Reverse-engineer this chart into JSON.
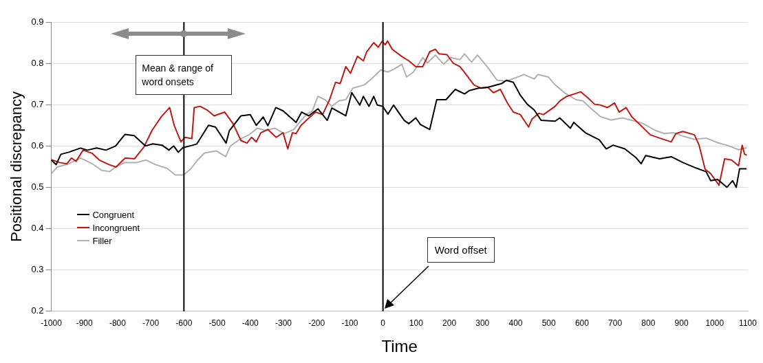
{
  "chart_data": {
    "type": "line",
    "xlabel": "Time",
    "ylabel": "Positional discrepancy",
    "xlim": [
      -1000,
      1100
    ],
    "xticks": [
      -1000,
      -900,
      -800,
      -700,
      -600,
      -500,
      -400,
      -300,
      -200,
      -100,
      0,
      100,
      200,
      300,
      400,
      500,
      600,
      700,
      800,
      900,
      1000,
      1100
    ],
    "ylim": [
      0.2,
      0.9
    ],
    "yticks": [
      0.2,
      0.3,
      0.4,
      0.5,
      0.6,
      0.7,
      0.8,
      0.9
    ],
    "grid": "y",
    "legend": "bottom left",
    "marker": "none",
    "line_style": "solid",
    "ref_lines": [
      {
        "axis": "x",
        "value": -600,
        "color": "#000000"
      },
      {
        "axis": "x",
        "value": 0,
        "color": "#000000"
      }
    ],
    "annotations": [
      {
        "text": "Mean & range of word onsets",
        "x": -600,
        "y": 0.82
      },
      "Word offset"
    ],
    "series": [
      {
        "name": "Congruent",
        "color": "#000000",
        "x": [
          -1000,
          -985,
          -971,
          -947,
          -912,
          -891,
          -863,
          -835,
          -806,
          -778,
          -750,
          -716,
          -694,
          -666,
          -645,
          -631,
          -617,
          -603,
          -582,
          -561,
          -526,
          -505,
          -473,
          -463,
          -428,
          -400,
          -382,
          -361,
          -347,
          -323,
          -301,
          -262,
          -245,
          -224,
          -196,
          -168,
          -154,
          -112,
          -94,
          -70,
          -59,
          -42,
          -28,
          -17,
          -1,
          15,
          32,
          64,
          78,
          99,
          113,
          141,
          162,
          190,
          218,
          246,
          260,
          288,
          316,
          358,
          372,
          393,
          414,
          435,
          456,
          477,
          519,
          533,
          565,
          575,
          610,
          652,
          673,
          694,
          729,
          764,
          778,
          792,
          834,
          869,
          904,
          946,
          974,
          988,
          1009,
          1037,
          1054,
          1065,
          1075,
          1096
        ],
        "values": [
          0.566,
          0.555,
          0.58,
          0.585,
          0.595,
          0.59,
          0.595,
          0.59,
          0.6,
          0.628,
          0.625,
          0.6,
          0.605,
          0.602,
          0.59,
          0.6,
          0.585,
          0.596,
          0.6,
          0.605,
          0.65,
          0.646,
          0.607,
          0.637,
          0.673,
          0.676,
          0.65,
          0.67,
          0.649,
          0.693,
          0.685,
          0.657,
          0.682,
          0.673,
          0.69,
          0.662,
          0.692,
          0.673,
          0.729,
          0.699,
          0.72,
          0.696,
          0.72,
          0.699,
          0.696,
          0.677,
          0.699,
          0.662,
          0.654,
          0.668,
          0.652,
          0.64,
          0.712,
          0.712,
          0.737,
          0.726,
          0.734,
          0.74,
          0.742,
          0.751,
          0.759,
          0.754,
          0.723,
          0.701,
          0.687,
          0.662,
          0.66,
          0.668,
          0.643,
          0.657,
          0.632,
          0.615,
          0.593,
          0.602,
          0.593,
          0.571,
          0.557,
          0.577,
          0.569,
          0.574,
          0.56,
          0.546,
          0.538,
          0.516,
          0.519,
          0.5,
          0.516,
          0.5,
          0.545,
          0.545
        ]
      },
      {
        "name": "Incongruent",
        "color": "#c0170f",
        "x": [
          -1000,
          -975,
          -953,
          -939,
          -925,
          -904,
          -876,
          -855,
          -826,
          -805,
          -777,
          -749,
          -721,
          -696,
          -668,
          -643,
          -629,
          -609,
          -597,
          -576,
          -569,
          -551,
          -530,
          -509,
          -477,
          -452,
          -428,
          -410,
          -396,
          -382,
          -368,
          -347,
          -322,
          -301,
          -287,
          -273,
          -262,
          -248,
          -227,
          -203,
          -182,
          -161,
          -143,
          -129,
          -112,
          -98,
          -77,
          -59,
          -49,
          -28,
          -14,
          -3,
          7,
          14,
          28,
          56,
          78,
          99,
          120,
          141,
          158,
          169,
          193,
          211,
          232,
          246,
          274,
          295,
          316,
          333,
          354,
          375,
          393,
          414,
          439,
          449,
          470,
          484,
          519,
          533,
          554,
          596,
          617,
          638,
          656,
          677,
          698,
          712,
          733,
          750,
          778,
          806,
          834,
          869,
          883,
          904,
          939,
          953,
          971,
          988,
          1013,
          1030,
          1051,
          1072,
          1083,
          1090,
          1097
        ],
        "values": [
          0.567,
          0.56,
          0.557,
          0.571,
          0.563,
          0.59,
          0.582,
          0.566,
          0.555,
          0.549,
          0.571,
          0.569,
          0.597,
          0.638,
          0.671,
          0.693,
          0.649,
          0.61,
          0.621,
          0.618,
          0.693,
          0.696,
          0.687,
          0.673,
          0.682,
          0.654,
          0.613,
          0.607,
          0.621,
          0.61,
          0.632,
          0.64,
          0.621,
          0.632,
          0.593,
          0.632,
          0.63,
          0.649,
          0.665,
          0.682,
          0.676,
          0.712,
          0.754,
          0.751,
          0.792,
          0.776,
          0.817,
          0.806,
          0.828,
          0.85,
          0.839,
          0.853,
          0.845,
          0.854,
          0.834,
          0.817,
          0.806,
          0.792,
          0.792,
          0.828,
          0.834,
          0.823,
          0.821,
          0.801,
          0.792,
          0.778,
          0.748,
          0.74,
          0.742,
          0.729,
          0.737,
          0.704,
          0.682,
          0.676,
          0.646,
          0.665,
          0.679,
          0.676,
          0.696,
          0.709,
          0.72,
          0.731,
          0.717,
          0.701,
          0.699,
          0.693,
          0.704,
          0.682,
          0.693,
          0.671,
          0.649,
          0.627,
          0.619,
          0.61,
          0.63,
          0.635,
          0.627,
          0.602,
          0.544,
          0.533,
          0.505,
          0.569,
          0.566,
          0.552,
          0.602,
          0.58,
          0.578
        ]
      },
      {
        "name": "Filler",
        "color": "#b0b0b0",
        "x": [
          -1000,
          -982,
          -947,
          -912,
          -876,
          -848,
          -824,
          -806,
          -778,
          -742,
          -714,
          -686,
          -651,
          -626,
          -601,
          -580,
          -559,
          -538,
          -502,
          -474,
          -460,
          -432,
          -404,
          -379,
          -354,
          -326,
          -297,
          -269,
          -255,
          -231,
          -213,
          -196,
          -175,
          -154,
          -133,
          -112,
          -91,
          -56,
          -35,
          -7,
          15,
          36,
          57,
          71,
          92,
          120,
          134,
          158,
          183,
          204,
          232,
          246,
          267,
          285,
          316,
          344,
          372,
          400,
          425,
          456,
          467,
          498,
          519,
          547,
          582,
          603,
          624,
          656,
          687,
          722,
          750,
          785,
          820,
          848,
          876,
          904,
          939,
          974,
          1009,
          1044,
          1072,
          1097
        ],
        "values": [
          0.533,
          0.549,
          0.557,
          0.571,
          0.557,
          0.541,
          0.538,
          0.549,
          0.56,
          0.56,
          0.566,
          0.555,
          0.546,
          0.53,
          0.53,
          0.544,
          0.566,
          0.583,
          0.588,
          0.574,
          0.6,
          0.616,
          0.627,
          0.643,
          0.638,
          0.643,
          0.63,
          0.64,
          0.654,
          0.676,
          0.685,
          0.72,
          0.712,
          0.696,
          0.709,
          0.712,
          0.74,
          0.748,
          0.762,
          0.784,
          0.779,
          0.787,
          0.798,
          0.767,
          0.779,
          0.814,
          0.801,
          0.82,
          0.798,
          0.814,
          0.809,
          0.823,
          0.803,
          0.82,
          0.79,
          0.759,
          0.757,
          0.765,
          0.773,
          0.762,
          0.773,
          0.767,
          0.748,
          0.729,
          0.712,
          0.709,
          0.693,
          0.671,
          0.663,
          0.668,
          0.662,
          0.654,
          0.638,
          0.63,
          0.632,
          0.624,
          0.616,
          0.619,
          0.608,
          0.6,
          0.591,
          0.596
        ]
      }
    ]
  }
}
